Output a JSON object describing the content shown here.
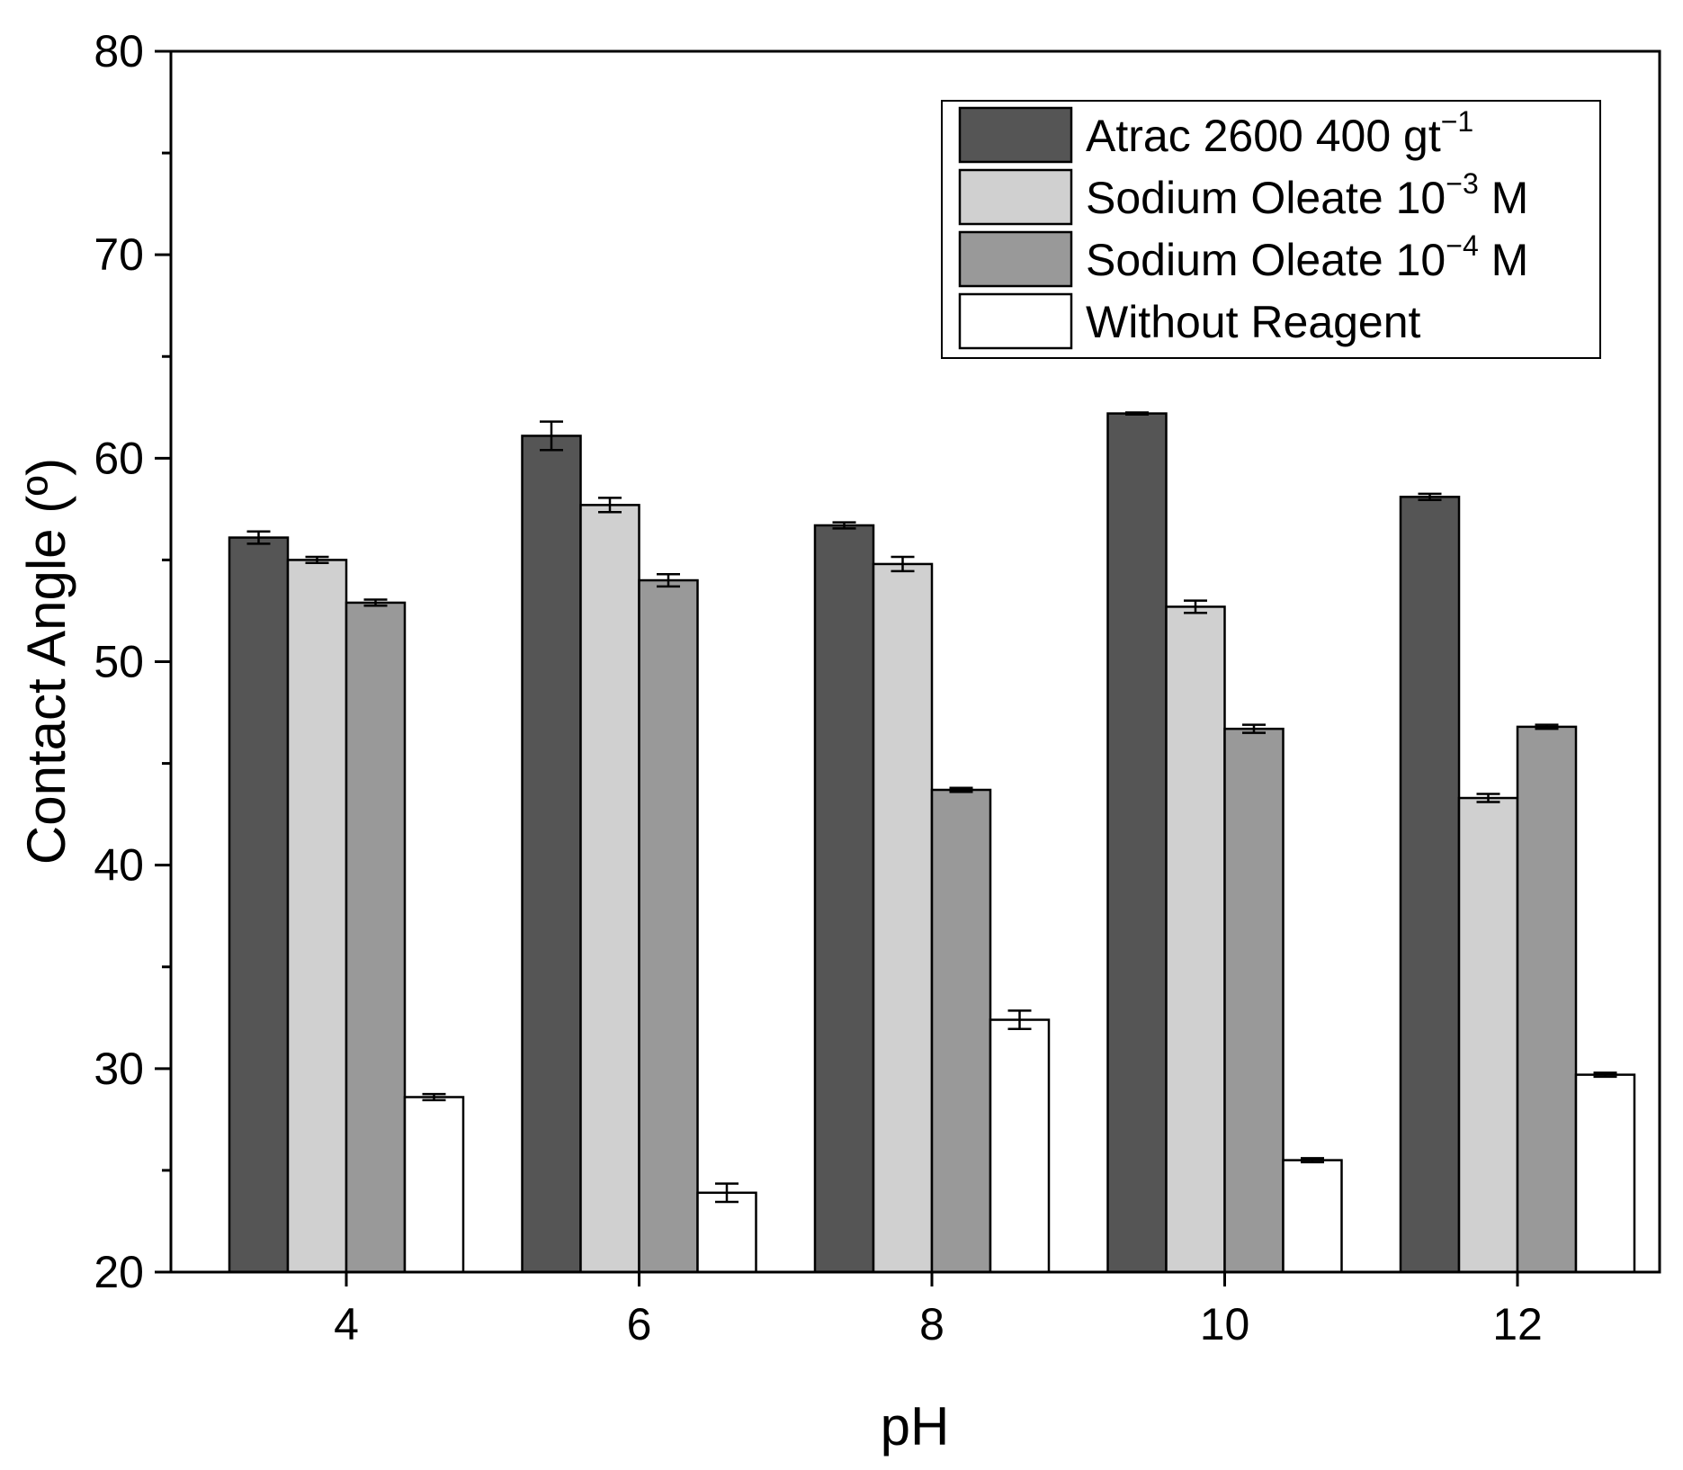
{
  "chart_data": {
    "type": "bar",
    "title": "",
    "xlabel": "pH",
    "ylabel": "Contact Angle (º)",
    "categories": [
      "4",
      "6",
      "8",
      "10",
      "12"
    ],
    "ylim": [
      20,
      80
    ],
    "yticks": [
      "20",
      "30",
      "40",
      "50",
      "60",
      "70",
      "80"
    ],
    "legend_position": "top-right",
    "series": [
      {
        "name": "Atrac 2600 400 gt",
        "name_sup": "−1",
        "name_suffix": "",
        "color": "#555555",
        "values": [
          56.1,
          61.1,
          56.7,
          62.2,
          58.1
        ],
        "errors": [
          0.3,
          0.7,
          0.15,
          0.05,
          0.15
        ]
      },
      {
        "name": "Sodium Oleate 10",
        "name_sup": "−3",
        "name_suffix": " M",
        "color": "#d0d0d0",
        "values": [
          55.0,
          57.7,
          54.8,
          52.7,
          43.3
        ],
        "errors": [
          0.15,
          0.35,
          0.35,
          0.3,
          0.2
        ]
      },
      {
        "name": "Sodium Oleate 10",
        "name_sup": "−4",
        "name_suffix": " M",
        "color": "#999999",
        "values": [
          52.9,
          54.0,
          43.7,
          46.7,
          46.8
        ],
        "errors": [
          0.15,
          0.3,
          0.1,
          0.2,
          0.1
        ]
      },
      {
        "name": "Without Reagent",
        "name_sup": "",
        "name_suffix": "",
        "color": "#ffffff",
        "values": [
          28.6,
          23.9,
          32.4,
          25.5,
          29.7
        ],
        "errors": [
          0.15,
          0.45,
          0.45,
          0.1,
          0.1
        ]
      }
    ]
  }
}
